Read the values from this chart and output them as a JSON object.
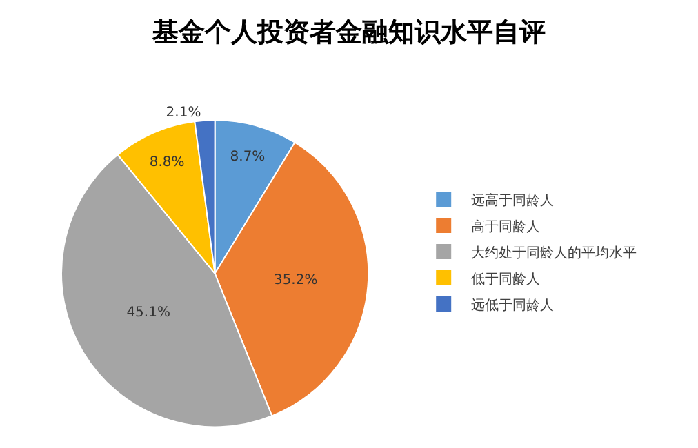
{
  "chart_data": {
    "type": "pie",
    "title": "基金个人投资者金融知识水平自评",
    "categories": [
      "远高于同龄人",
      "高于同龄人",
      "大约处于同龄人的平均水平",
      "低于同龄人",
      "远低于同龄人"
    ],
    "values": [
      8.7,
      35.2,
      45.1,
      8.8,
      2.1
    ],
    "value_labels": [
      "8.7%",
      "35.2%",
      "45.1%",
      "8.8%",
      "2.1%"
    ],
    "colors": [
      "#5b9bd5",
      "#ed7d31",
      "#a5a5a5",
      "#ffc000",
      "#4472c4"
    ],
    "legend": "right"
  }
}
